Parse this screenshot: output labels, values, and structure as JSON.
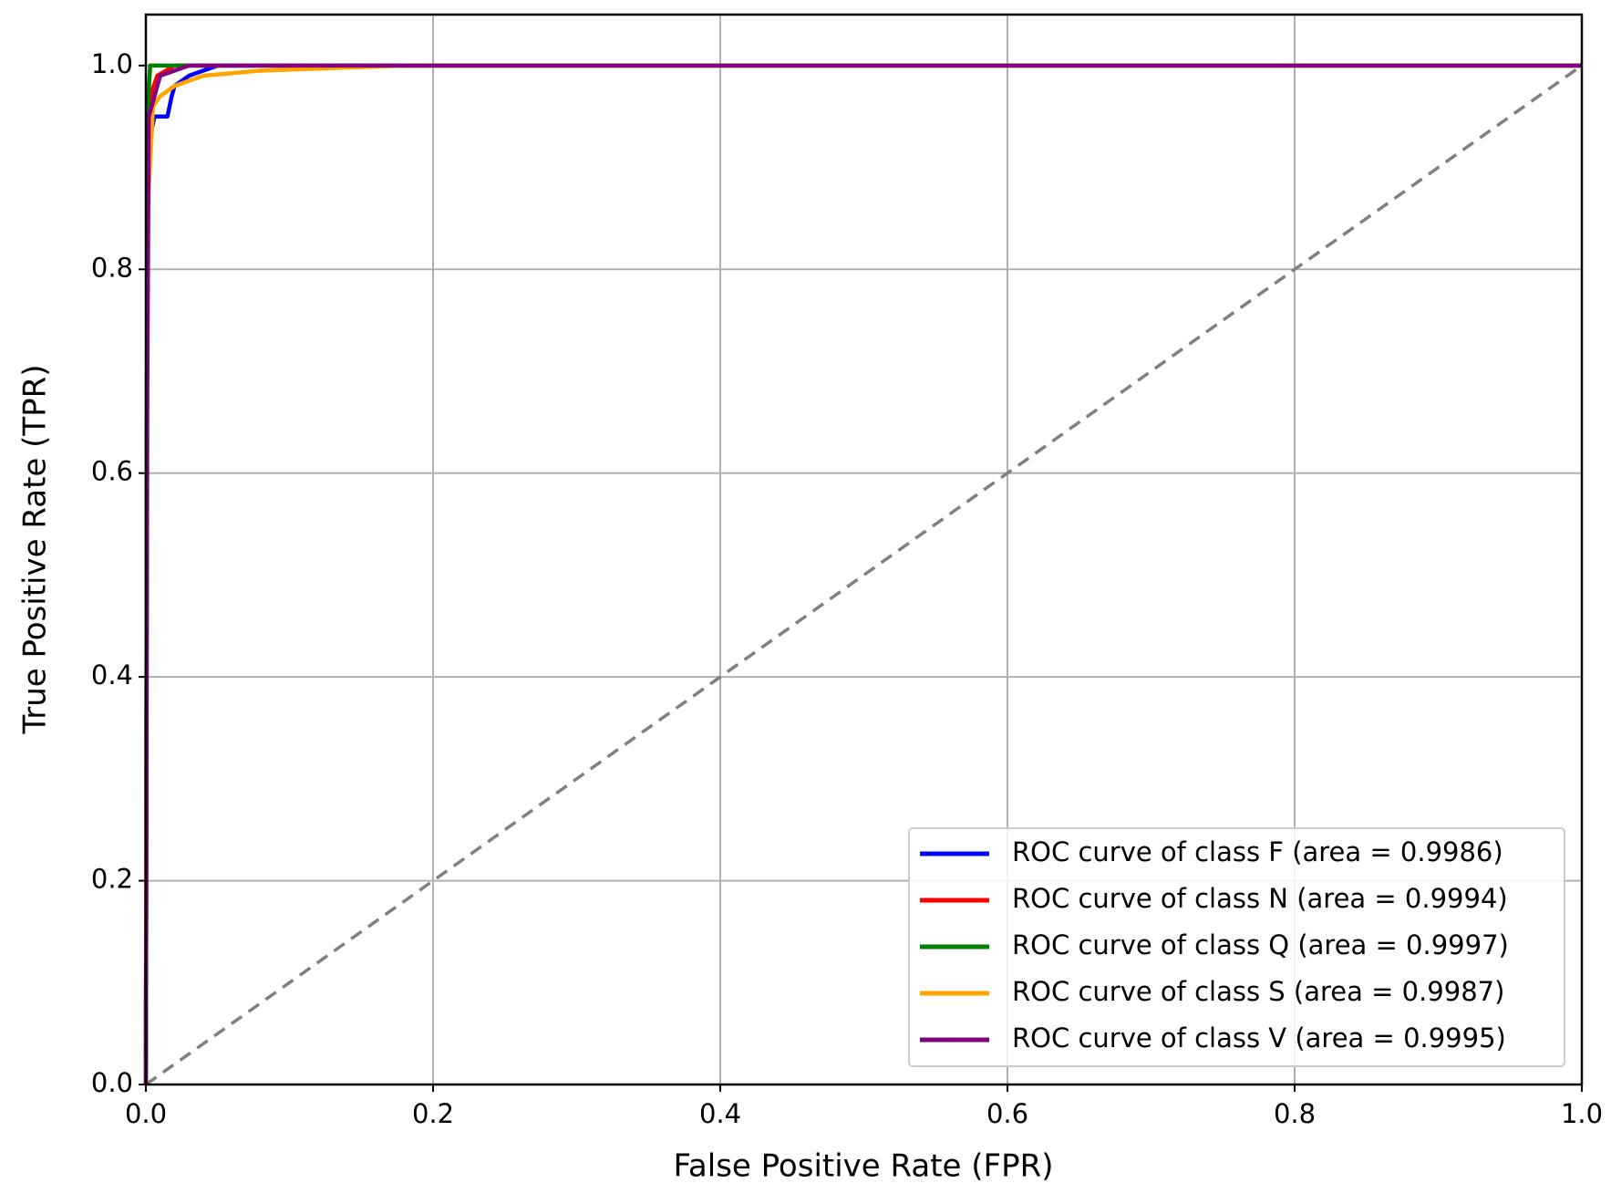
{
  "chart_data": {
    "type": "line",
    "xlabel": "False Positive Rate (FPR)",
    "ylabel": "True Positive Rate (TPR)",
    "xlim": [
      0,
      1
    ],
    "ylim": [
      0,
      1.05
    ],
    "xticks": [
      {
        "value": 0,
        "label": "0.0"
      },
      0.2,
      0.4,
      0.6,
      0.8,
      {
        "value": 1,
        "label": "1.0"
      }
    ],
    "yticks": [
      {
        "value": 0,
        "label": "0.0"
      },
      0.2,
      0.4,
      0.6,
      0.8,
      {
        "value": 1,
        "label": "1.0"
      }
    ],
    "grid": true,
    "legend": "lower right",
    "series": [
      {
        "name": "ROC curve of class F (area = 0.9986)",
        "color": "#0000ff",
        "x": [
          0,
          0.001,
          0.003,
          0.006,
          0.015,
          0.018,
          0.02,
          0.03,
          0.05,
          1
        ],
        "values": [
          0,
          0.88,
          0.93,
          0.95,
          0.95,
          0.97,
          0.98,
          0.99,
          1,
          1
        ]
      },
      {
        "name": "ROC curve of class N (area = 0.9994)",
        "color": "#ff0000",
        "x": [
          0,
          0.001,
          0.003,
          0.008,
          0.02,
          1
        ],
        "values": [
          0,
          0.9,
          0.97,
          0.99,
          1,
          1
        ]
      },
      {
        "name": "ROC curve of class Q (area = 0.9997)",
        "color": "#008000",
        "x": [
          0,
          0.001,
          0.003,
          1
        ],
        "values": [
          0,
          0.95,
          1,
          1
        ]
      },
      {
        "name": "ROC curve of class S (area = 0.9987)",
        "color": "#ffa500",
        "x": [
          0,
          0.001,
          0.005,
          0.01,
          0.02,
          0.04,
          0.08,
          0.18,
          1
        ],
        "values": [
          0,
          0.85,
          0.96,
          0.97,
          0.98,
          0.99,
          0.995,
          1,
          1
        ]
      },
      {
        "name": "ROC curve of class V (area = 0.9995)",
        "color": "#800080",
        "x": [
          0,
          0.001,
          0.002,
          0.01,
          0.03,
          1
        ],
        "values": [
          0,
          0.68,
          0.95,
          0.99,
          1,
          1
        ]
      }
    ],
    "diagonal": {
      "x": [
        0,
        1
      ],
      "values": [
        0,
        1
      ],
      "color": "#808080"
    }
  }
}
